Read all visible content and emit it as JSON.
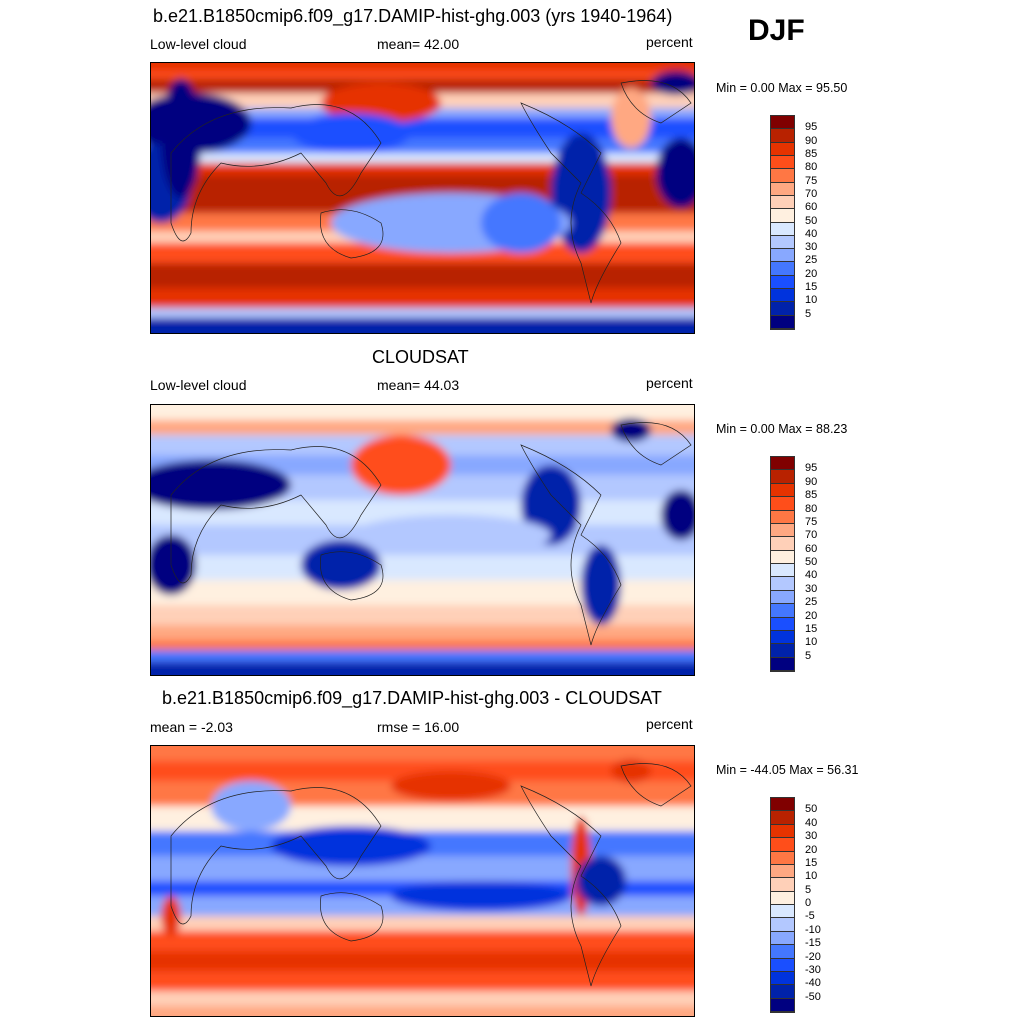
{
  "season": "DJF",
  "colors": [
    "#000080",
    "#0022aa",
    "#0033dd",
    "#1a4fff",
    "#4477ff",
    "#88a8ff",
    "#b3c8ff",
    "#d9e8ff",
    "#fff0e0",
    "#ffd0b8",
    "#ffa882",
    "#ff7744",
    "#ff4e1a",
    "#e63300",
    "#b82200",
    "#800000"
  ],
  "panels": [
    {
      "title": "b.e21.B1850cmip6.f09_g17.DAMIP-hist-ghg.003 (yrs 1940-1964)",
      "left": "Low-level cloud",
      "center": "mean=  42.00",
      "right": "percent",
      "minmax": "Min =   0.00 Max =  95.50",
      "levels": [
        "5",
        "10",
        "15",
        "20",
        "25",
        "30",
        "40",
        "50",
        "60",
        "70",
        "75",
        "80",
        "85",
        "90",
        "95"
      ]
    },
    {
      "title": "CLOUDSAT",
      "left": "Low-level cloud",
      "center": "mean=  44.03",
      "right": "percent",
      "minmax": "Min =   0.00 Max =  88.23",
      "levels": [
        "5",
        "10",
        "15",
        "20",
        "25",
        "30",
        "40",
        "50",
        "60",
        "70",
        "75",
        "80",
        "85",
        "90",
        "95"
      ]
    },
    {
      "title": "b.e21.B1850cmip6.f09_g17.DAMIP-hist-ghg.003 - CLOUDSAT",
      "left": "mean =  -2.03",
      "center": "rmse =  16.00",
      "right": "percent",
      "minmax": "Min = -44.05 Max =  56.31",
      "levels": [
        "-50",
        "-40",
        "-30",
        "-20",
        "-15",
        "-10",
        "-5",
        "0",
        "5",
        "10",
        "15",
        "20",
        "30",
        "40",
        "50"
      ]
    }
  ]
}
